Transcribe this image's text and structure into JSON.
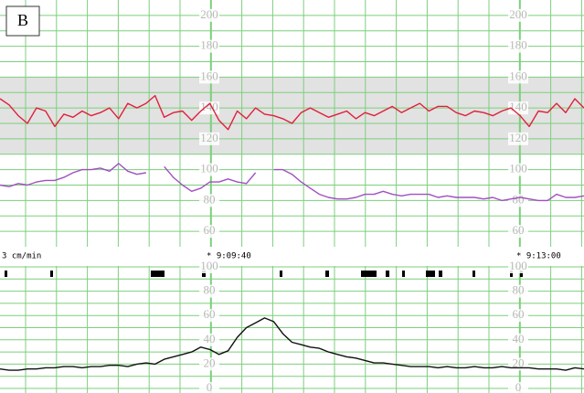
{
  "panel_label": "B",
  "paper_speed": "3 cm/min",
  "time_marks": [
    "* 9:09:40",
    "* 9:13:00"
  ],
  "chart_data": [
    {
      "type": "line",
      "ylim": [
        50,
        210
      ],
      "yticks": [
        60,
        80,
        100,
        120,
        140,
        160,
        180,
        200
      ],
      "band": [
        110,
        160
      ],
      "band_color": "#e2e2e2",
      "grid": true,
      "grid_color": "#7ccf7c",
      "series": [
        {
          "color": "#e0203a",
          "values": [
            146,
            142,
            135,
            130,
            140,
            138,
            128,
            136,
            134,
            138,
            135,
            137,
            140,
            133,
            143,
            140,
            143,
            148,
            134,
            137,
            138,
            132,
            138,
            143,
            132,
            126,
            138,
            133,
            140,
            136,
            135,
            133,
            130,
            137,
            140,
            137,
            134,
            136,
            138,
            133,
            137,
            135,
            138,
            141,
            137,
            140,
            143,
            138,
            141,
            141,
            137,
            135,
            138,
            137,
            135,
            138,
            140,
            135,
            128,
            138,
            137,
            143,
            137,
            146,
            140
          ]
        },
        {
          "color": "#a050c0",
          "values": [
            90,
            89,
            91,
            90,
            92,
            93,
            93,
            95,
            98,
            100,
            100,
            101,
            99,
            104,
            99,
            97,
            98,
            null,
            102,
            95,
            90,
            86,
            88,
            92,
            92,
            94,
            92,
            91,
            98,
            null,
            100,
            100,
            97,
            92,
            88,
            84,
            82,
            81,
            81,
            82,
            84,
            84,
            86,
            84,
            83,
            84,
            84,
            84,
            82,
            83,
            82,
            82,
            82,
            81,
            82,
            80,
            81,
            82,
            81,
            80,
            80,
            84,
            82,
            82,
            83
          ]
        }
      ]
    },
    {
      "type": "line",
      "ylim": [
        0,
        100
      ],
      "yticks": [
        0,
        20,
        40,
        60,
        80,
        100
      ],
      "grid": true,
      "grid_color": "#7ccf7c",
      "series": [
        {
          "color": "#111111",
          "values": [
            16,
            15,
            15,
            16,
            16,
            17,
            17,
            18,
            18,
            17,
            18,
            18,
            19,
            19,
            18,
            20,
            21,
            20,
            24,
            26,
            28,
            30,
            34,
            32,
            28,
            31,
            42,
            50,
            54,
            58,
            55,
            45,
            38,
            36,
            34,
            33,
            30,
            28,
            26,
            25,
            23,
            21,
            21,
            20,
            19,
            18,
            18,
            18,
            17,
            18,
            17,
            17,
            18,
            17,
            17,
            18,
            17,
            17,
            17,
            16,
            16,
            16,
            15,
            17,
            16
          ]
        }
      ]
    }
  ]
}
